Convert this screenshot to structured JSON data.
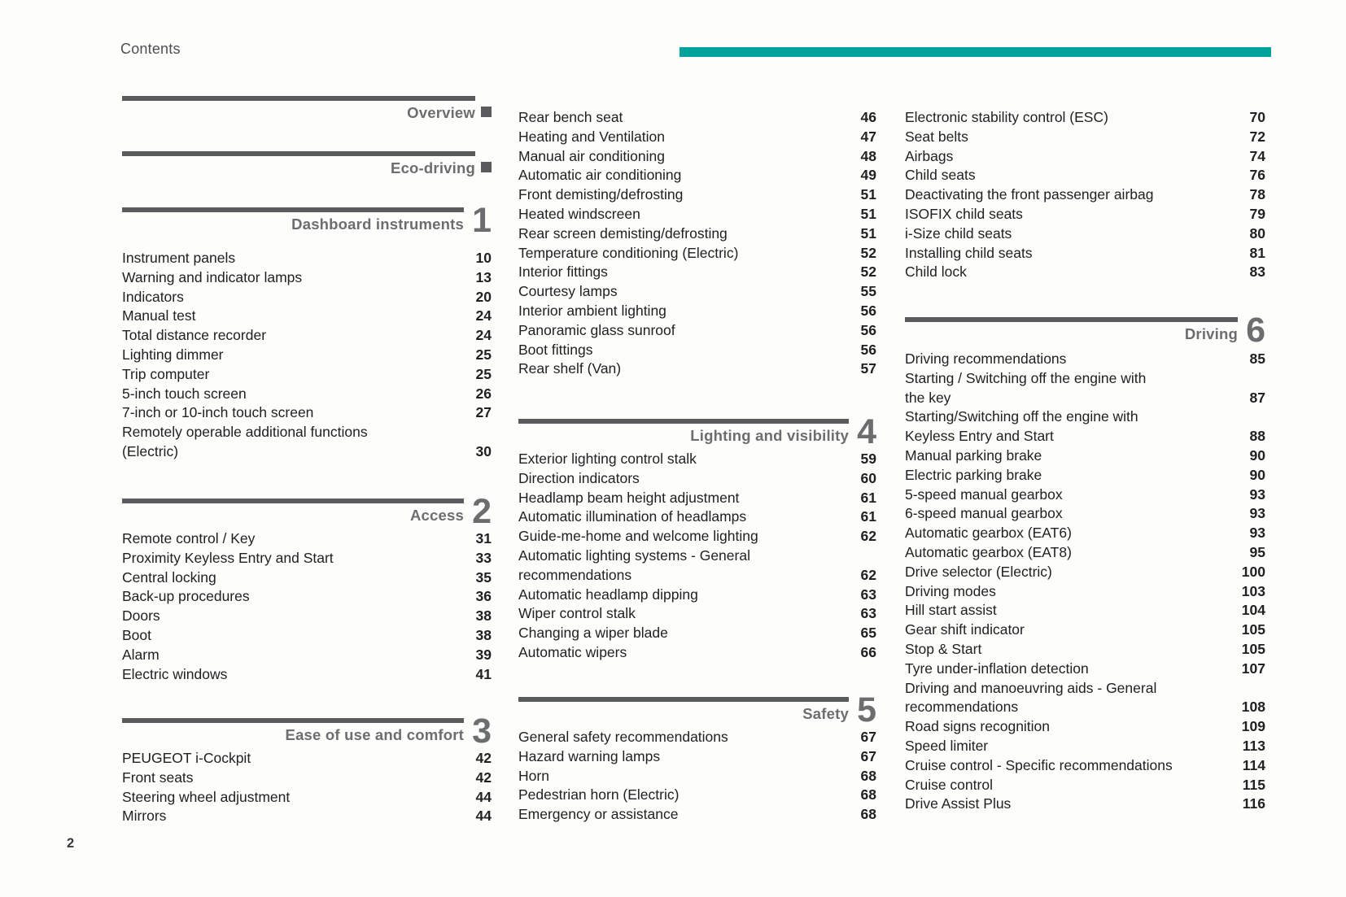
{
  "page": {
    "label": "Contents",
    "page_number": "2"
  },
  "colors": {
    "accent_teal": "#00a29b",
    "header_gray": "#6b6d6f",
    "rule_gray": "#595b5d",
    "text": "#212121"
  },
  "columns": [
    {
      "sections": [
        {
          "title": "Overview",
          "marker": "square",
          "items": []
        },
        {
          "title": "Eco-driving",
          "marker": "square",
          "items": []
        },
        {
          "title": "Dashboard instruments",
          "number": "1",
          "items": [
            {
              "label": "Instrument panels",
              "page": "10"
            },
            {
              "label": "Warning and indicator lamps",
              "page": "13"
            },
            {
              "label": "Indicators",
              "page": "20"
            },
            {
              "label": "Manual test",
              "page": "24"
            },
            {
              "label": "Total distance recorder",
              "page": "24"
            },
            {
              "label": "Lighting dimmer",
              "page": "25"
            },
            {
              "label": "Trip computer",
              "page": "25"
            },
            {
              "label": "5-inch touch screen",
              "page": "26"
            },
            {
              "label": "7-inch or 10-inch touch screen",
              "page": "27"
            },
            {
              "label": "Remotely operable additional functions\n(Electric)",
              "page": "30"
            }
          ]
        },
        {
          "title": "Access",
          "number": "2",
          "items": [
            {
              "label": "Remote control / Key",
              "page": "31"
            },
            {
              "label": "Proximity Keyless Entry and Start",
              "page": "33"
            },
            {
              "label": "Central locking",
              "page": "35"
            },
            {
              "label": "Back-up procedures",
              "page": "36"
            },
            {
              "label": "Doors",
              "page": "38"
            },
            {
              "label": "Boot",
              "page": "38"
            },
            {
              "label": "Alarm",
              "page": "39"
            },
            {
              "label": "Electric windows",
              "page": "41"
            }
          ]
        },
        {
          "title": "Ease of use and comfort",
          "number": "3",
          "items": [
            {
              "label": "PEUGEOT i-Cockpit",
              "page": "42"
            },
            {
              "label": "Front seats",
              "page": "42"
            },
            {
              "label": "Steering wheel adjustment",
              "page": "44"
            },
            {
              "label": "Mirrors",
              "page": "44"
            }
          ]
        }
      ]
    },
    {
      "sections": [
        {
          "items": [
            {
              "label": "Rear bench seat",
              "page": "46"
            },
            {
              "label": "Heating and Ventilation",
              "page": "47"
            },
            {
              "label": "Manual air conditioning",
              "page": "48"
            },
            {
              "label": "Automatic air conditioning",
              "page": "49"
            },
            {
              "label": "Front demisting/defrosting",
              "page": "51"
            },
            {
              "label": "Heated windscreen",
              "page": "51"
            },
            {
              "label": "Rear screen demisting/defrosting",
              "page": "51"
            },
            {
              "label": "Temperature conditioning (Electric)",
              "page": "52"
            },
            {
              "label": "Interior fittings",
              "page": "52"
            },
            {
              "label": "Courtesy lamps",
              "page": "55"
            },
            {
              "label": "Interior ambient lighting",
              "page": "56"
            },
            {
              "label": "Panoramic glass sunroof",
              "page": "56"
            },
            {
              "label": "Boot fittings",
              "page": "56"
            },
            {
              "label": "Rear shelf (Van)",
              "page": "57"
            }
          ]
        },
        {
          "title": "Lighting and visibility",
          "number": "4",
          "items": [
            {
              "label": "Exterior lighting control stalk",
              "page": "59"
            },
            {
              "label": "Direction indicators",
              "page": "60"
            },
            {
              "label": "Headlamp beam height adjustment",
              "page": "61"
            },
            {
              "label": "Automatic illumination of headlamps",
              "page": "61"
            },
            {
              "label": "Guide-me-home and welcome lighting",
              "page": "62"
            },
            {
              "label": "Automatic lighting systems - General\nrecommendations",
              "page": "62"
            },
            {
              "label": "Automatic headlamp dipping",
              "page": "63"
            },
            {
              "label": "Wiper control stalk",
              "page": "63"
            },
            {
              "label": "Changing a wiper blade",
              "page": "65"
            },
            {
              "label": "Automatic wipers",
              "page": "66"
            }
          ]
        },
        {
          "title": "Safety",
          "number": "5",
          "items": [
            {
              "label": "General safety recommendations",
              "page": "67"
            },
            {
              "label": "Hazard warning lamps",
              "page": "67"
            },
            {
              "label": "Horn",
              "page": "68"
            },
            {
              "label": "Pedestrian horn (Electric)",
              "page": "68"
            },
            {
              "label": "Emergency or assistance",
              "page": "68"
            }
          ]
        }
      ]
    },
    {
      "sections": [
        {
          "items": [
            {
              "label": "Electronic stability control (ESC)",
              "page": "70"
            },
            {
              "label": "Seat belts",
              "page": "72"
            },
            {
              "label": "Airbags",
              "page": "74"
            },
            {
              "label": "Child seats",
              "page": "76"
            },
            {
              "label": "Deactivating the front passenger airbag",
              "page": "78"
            },
            {
              "label": "ISOFIX child seats",
              "page": "79"
            },
            {
              "label": "i-Size child seats",
              "page": "80"
            },
            {
              "label": "Installing child seats",
              "page": "81"
            },
            {
              "label": "Child lock",
              "page": "83"
            }
          ]
        },
        {
          "title": "Driving",
          "number": "6",
          "items": [
            {
              "label": "Driving recommendations",
              "page": "85"
            },
            {
              "label": "Starting / Switching off the engine with\nthe key",
              "page": "87"
            },
            {
              "label": "Starting/Switching off the engine with\nKeyless Entry and Start",
              "page": "88"
            },
            {
              "label": "Manual parking brake",
              "page": "90"
            },
            {
              "label": "Electric parking brake",
              "page": "90"
            },
            {
              "label": "5-speed manual gearbox",
              "page": "93"
            },
            {
              "label": "6-speed manual gearbox",
              "page": "93"
            },
            {
              "label": "Automatic gearbox (EAT6)",
              "page": "93"
            },
            {
              "label": "Automatic gearbox (EAT8)",
              "page": "95"
            },
            {
              "label": "Drive selector (Electric)",
              "page": "100"
            },
            {
              "label": "Driving modes",
              "page": "103"
            },
            {
              "label": "Hill start assist",
              "page": "104"
            },
            {
              "label": "Gear shift indicator",
              "page": "105"
            },
            {
              "label": "Stop & Start",
              "page": "105"
            },
            {
              "label": "Tyre under-inflation detection",
              "page": "107"
            },
            {
              "label": "Driving and manoeuvring aids - General\nrecommendations",
              "page": "108"
            },
            {
              "label": "Road signs recognition",
              "page": "109"
            },
            {
              "label": "Speed limiter",
              "page": "113"
            },
            {
              "label": "Cruise control - Specific recommendations",
              "page": "114"
            },
            {
              "label": "Cruise control",
              "page": "115"
            },
            {
              "label": "Drive Assist Plus",
              "page": "116"
            }
          ]
        }
      ]
    }
  ]
}
